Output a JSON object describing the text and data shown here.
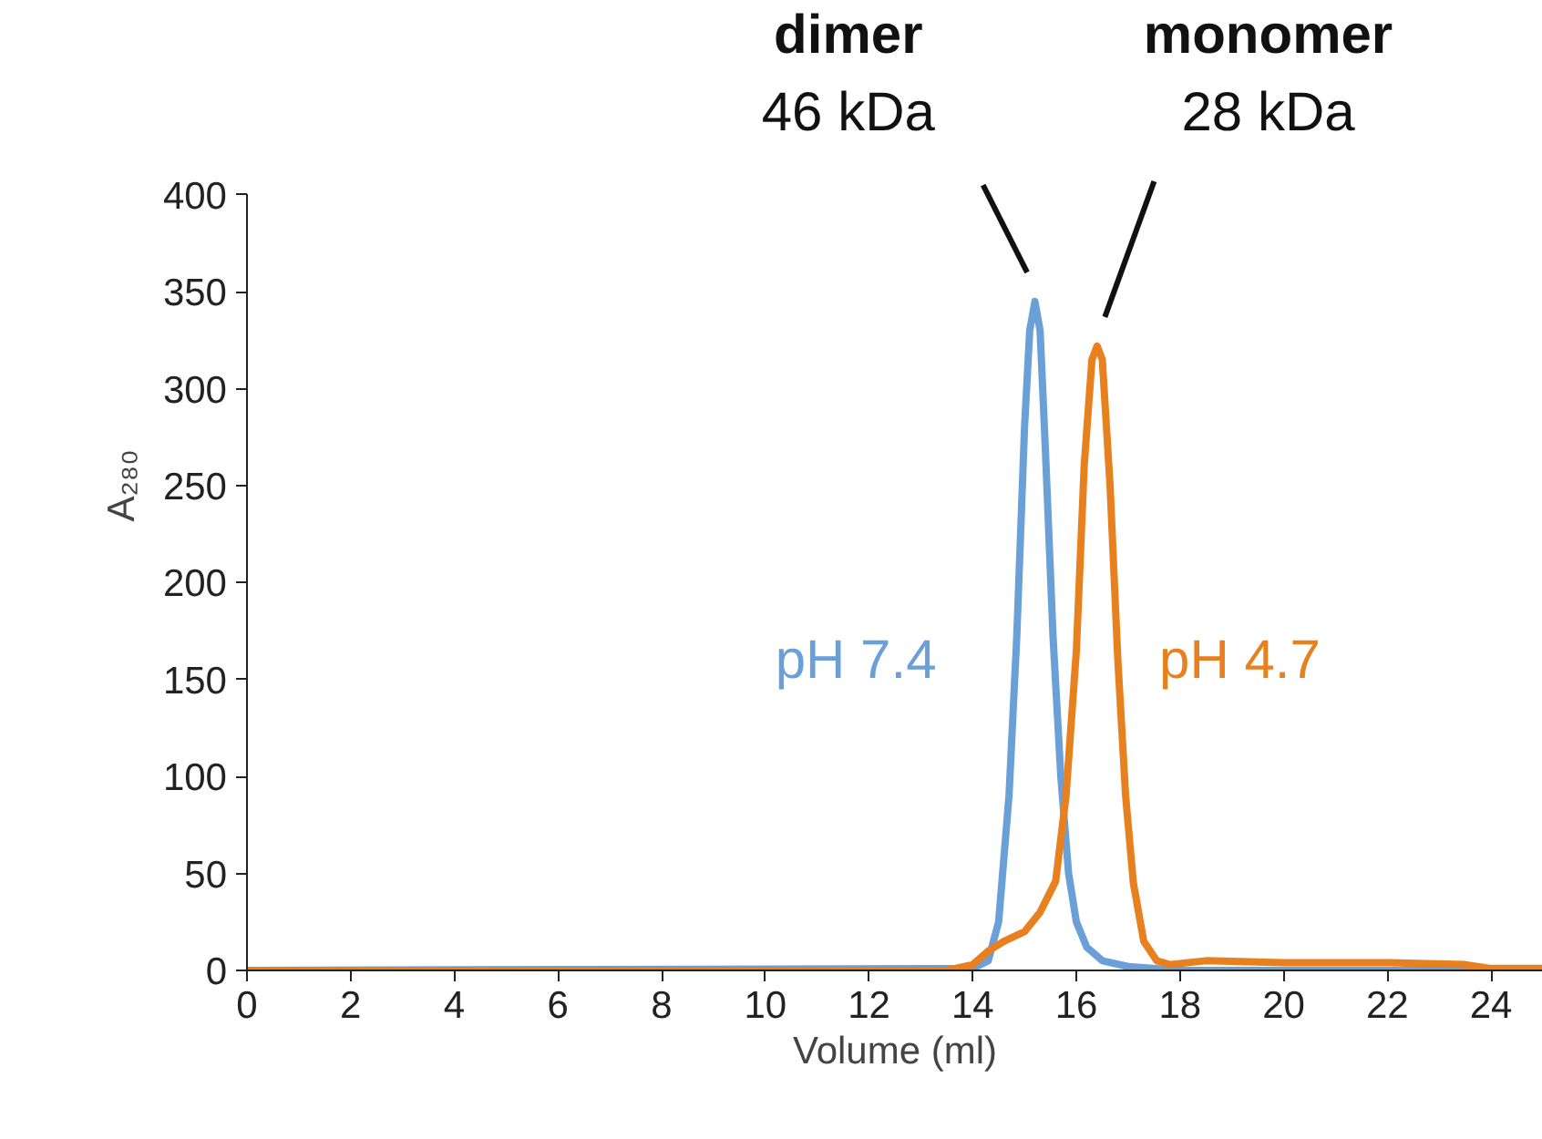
{
  "chart_data": {
    "type": "line",
    "xlabel": "Volume (ml)",
    "ylabel": "A₂₈₀",
    "xlim": [
      0,
      25
    ],
    "xticks": [
      0,
      2,
      4,
      6,
      8,
      10,
      12,
      14,
      16,
      18,
      20,
      22,
      24
    ],
    "ylim": [
      0,
      400
    ],
    "yticks": [
      0,
      50,
      100,
      150,
      200,
      250,
      300,
      350,
      400
    ],
    "grid": false,
    "marker": "none",
    "line_style": "solid",
    "series": [
      {
        "name": "pH 7.4",
        "color": "#6a9fd8",
        "x": [
          0,
          14.0,
          14.3,
          14.5,
          14.7,
          14.85,
          15.0,
          15.1,
          15.2,
          15.3,
          15.4,
          15.55,
          15.7,
          15.85,
          16.0,
          16.2,
          16.5,
          17,
          18,
          25
        ],
        "values": [
          0,
          1,
          5,
          25,
          90,
          172,
          280,
          330,
          345,
          330,
          270,
          172,
          100,
          50,
          25,
          12,
          5,
          2,
          0,
          0
        ]
      },
      {
        "name": "pH 4.7",
        "color": "#e8801f",
        "x": [
          0,
          13.5,
          14.0,
          14.3,
          14.6,
          15.0,
          15.3,
          15.6,
          15.8,
          16.0,
          16.15,
          16.3,
          16.4,
          16.5,
          16.65,
          16.8,
          16.95,
          17.1,
          17.3,
          17.55,
          17.8,
          18.5,
          20,
          22,
          23.5,
          24,
          25
        ],
        "values": [
          0,
          0,
          3,
          10,
          15,
          20,
          30,
          46,
          90,
          165,
          260,
          315,
          322,
          315,
          250,
          160,
          90,
          45,
          15,
          5,
          3,
          5,
          4,
          4,
          3,
          1,
          1
        ]
      }
    ],
    "annotations": [
      "dimer\n46 kDa",
      "monomer\n28 kDa"
    ]
  }
}
